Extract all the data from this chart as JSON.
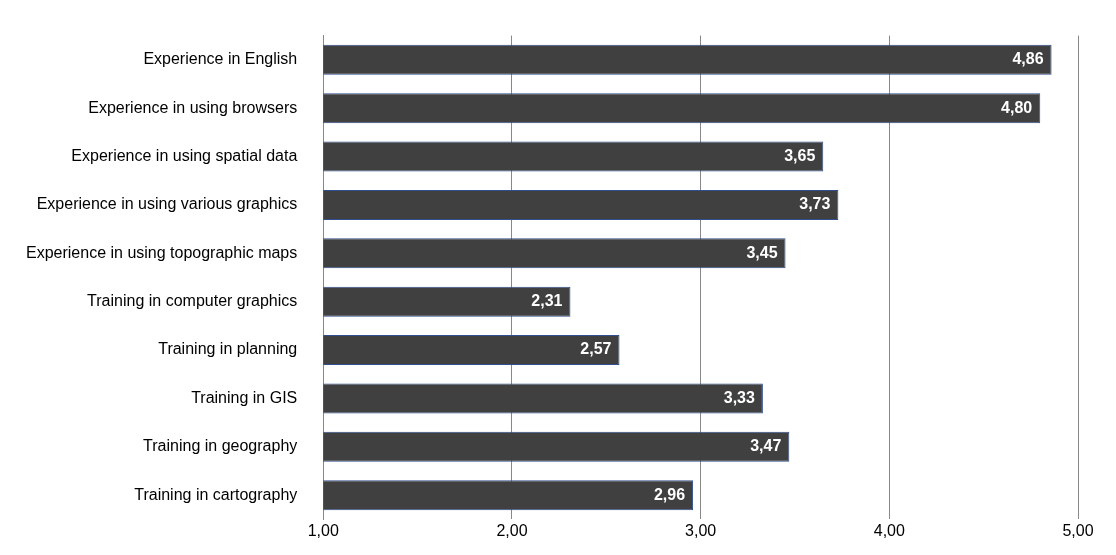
{
  "chart_data": {
    "type": "bar",
    "orientation": "horizontal",
    "categories": [
      "Experience in English",
      "Experience in using browsers",
      "Experience in using spatial data",
      "Experience in using various graphics",
      "Experience in using topographic maps",
      "Training in computer graphics",
      "Training in planning",
      "Training in GIS",
      "Training in geography",
      "Training in cartography"
    ],
    "values": [
      4.86,
      4.8,
      3.65,
      3.73,
      3.45,
      2.31,
      2.57,
      3.33,
      3.47,
      2.96
    ],
    "value_labels": [
      "4,86",
      "4,80",
      "3,65",
      "3,73",
      "3,45",
      "2,31",
      "2,57",
      "3,33",
      "3,47",
      "2,96"
    ],
    "color": "#404040",
    "xlim": [
      1,
      5
    ],
    "xticks": [
      {
        "value": 1,
        "label": "1,00"
      },
      {
        "value": 2,
        "label": "2,00"
      },
      {
        "value": 3,
        "label": "3,00"
      },
      {
        "value": 4,
        "label": "4,00"
      },
      {
        "value": 5,
        "label": "5,00"
      }
    ],
    "grid": "x",
    "legend": false
  }
}
